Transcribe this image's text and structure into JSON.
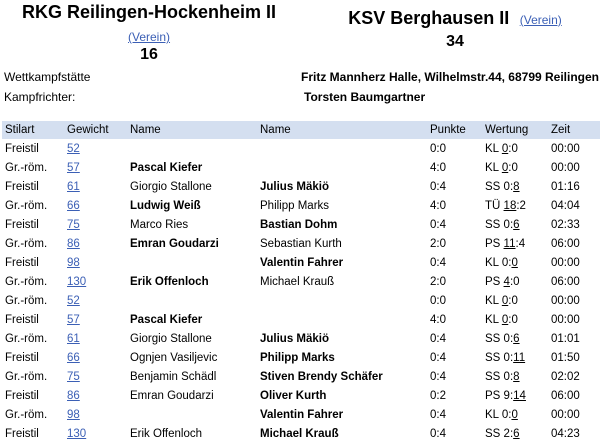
{
  "home": {
    "name": "RKG Reilingen-Hockenheim II",
    "verein": "(Verein)",
    "score": "16"
  },
  "away": {
    "name": "KSV Berghausen II",
    "verein": "(Verein)",
    "score": "34"
  },
  "info": {
    "venue_label": "Wettkampfstätte",
    "venue_value": "Fritz Mannherz Halle, Wilhelmstr.44, 68799 Reilingen",
    "referee_label": "Kampfrichter:",
    "referee_value": "Torsten Baumgartner"
  },
  "table": {
    "headers": [
      "Stilart",
      "Gewicht",
      "Name",
      "Name",
      "Punkte",
      "Wertung",
      "Zeit"
    ],
    "rows": [
      {
        "style": "Freistil",
        "weight": "52",
        "home": "",
        "home_bold": false,
        "away": "",
        "away_bold": false,
        "points": "0:0",
        "w_type": "KL",
        "w_a": "0",
        "w_b": "0",
        "w_ul": "a",
        "time": "00:00"
      },
      {
        "style": "Gr.-röm.",
        "weight": "57",
        "home": "Pascal Kiefer",
        "home_bold": true,
        "away": "",
        "away_bold": false,
        "points": "4:0",
        "w_type": "KL",
        "w_a": "0",
        "w_b": "0",
        "w_ul": "a",
        "time": "00:00"
      },
      {
        "style": "Freistil",
        "weight": "61",
        "home": "Giorgio Stallone",
        "home_bold": false,
        "away": "Julius Mäkiö",
        "away_bold": true,
        "points": "0:4",
        "w_type": "SS",
        "w_a": "0",
        "w_b": "8",
        "w_ul": "b",
        "time": "01:16"
      },
      {
        "style": "Gr.-röm.",
        "weight": "66",
        "home": "Ludwig Weiß",
        "home_bold": true,
        "away": "Philipp Marks",
        "away_bold": false,
        "points": "4:0",
        "w_type": "TÜ",
        "w_a": "18",
        "w_b": "2",
        "w_ul": "a",
        "time": "04:04"
      },
      {
        "style": "Freistil",
        "weight": "75",
        "home": "Marco Ries",
        "home_bold": false,
        "away": "Bastian Dohm",
        "away_bold": true,
        "points": "0:4",
        "w_type": "SS",
        "w_a": "0",
        "w_b": "6",
        "w_ul": "b",
        "time": "02:33"
      },
      {
        "style": "Gr.-röm.",
        "weight": "86",
        "home": "Emran Goudarzi",
        "home_bold": true,
        "away": "Sebastian Kurth",
        "away_bold": false,
        "points": "2:0",
        "w_type": "PS",
        "w_a": "11",
        "w_b": "4",
        "w_ul": "a",
        "time": "06:00"
      },
      {
        "style": "Freistil",
        "weight": "98",
        "home": "",
        "home_bold": false,
        "away": "Valentin Fahrer",
        "away_bold": true,
        "points": "0:4",
        "w_type": "KL",
        "w_a": "0",
        "w_b": "0",
        "w_ul": "b",
        "time": "00:00"
      },
      {
        "style": "Gr.-röm.",
        "weight": "130",
        "home": "Erik Offenloch",
        "home_bold": true,
        "away": "Michael Krauß",
        "away_bold": false,
        "points": "2:0",
        "w_type": "PS",
        "w_a": "4",
        "w_b": "0",
        "w_ul": "a",
        "time": "06:00"
      },
      {
        "style": "Gr.-röm.",
        "weight": "52",
        "home": "",
        "home_bold": false,
        "away": "",
        "away_bold": false,
        "points": "0:0",
        "w_type": "KL",
        "w_a": "0",
        "w_b": "0",
        "w_ul": "a",
        "time": "00:00"
      },
      {
        "style": "Freistil",
        "weight": "57",
        "home": "Pascal Kiefer",
        "home_bold": true,
        "away": "",
        "away_bold": false,
        "points": "4:0",
        "w_type": "KL",
        "w_a": "0",
        "w_b": "0",
        "w_ul": "a",
        "time": "00:00"
      },
      {
        "style": "Gr.-röm.",
        "weight": "61",
        "home": "Giorgio Stallone",
        "home_bold": false,
        "away": "Julius Mäkiö",
        "away_bold": true,
        "points": "0:4",
        "w_type": "SS",
        "w_a": "0",
        "w_b": "6",
        "w_ul": "b",
        "time": "01:01"
      },
      {
        "style": "Freistil",
        "weight": "66",
        "home": "Ognjen Vasiljevic",
        "home_bold": false,
        "away": "Philipp Marks",
        "away_bold": true,
        "points": "0:4",
        "w_type": "SS",
        "w_a": "0",
        "w_b": "11",
        "w_ul": "b",
        "time": "01:50"
      },
      {
        "style": "Gr.-röm.",
        "weight": "75",
        "home": "Benjamin Schädl",
        "home_bold": false,
        "away": "Stiven Brendy Schäfer",
        "away_bold": true,
        "points": "0:4",
        "w_type": "SS",
        "w_a": "0",
        "w_b": "8",
        "w_ul": "b",
        "time": "02:02"
      },
      {
        "style": "Freistil",
        "weight": "86",
        "home": "Emran Goudarzi",
        "home_bold": false,
        "away": "Oliver Kurth",
        "away_bold": true,
        "points": "0:2",
        "w_type": "PS",
        "w_a": "9",
        "w_b": "14",
        "w_ul": "b",
        "time": "06:00"
      },
      {
        "style": "Gr.-röm.",
        "weight": "98",
        "home": "",
        "home_bold": false,
        "away": "Valentin Fahrer",
        "away_bold": true,
        "points": "0:4",
        "w_type": "KL",
        "w_a": "0",
        "w_b": "0",
        "w_ul": "b",
        "time": "00:00"
      },
      {
        "style": "Freistil",
        "weight": "130",
        "home": "Erik Offenloch",
        "home_bold": false,
        "away": "Michael Krauß",
        "away_bold": true,
        "points": "0:4",
        "w_type": "SS",
        "w_a": "2",
        "w_b": "6",
        "w_ul": "b",
        "time": "04:23"
      }
    ]
  }
}
